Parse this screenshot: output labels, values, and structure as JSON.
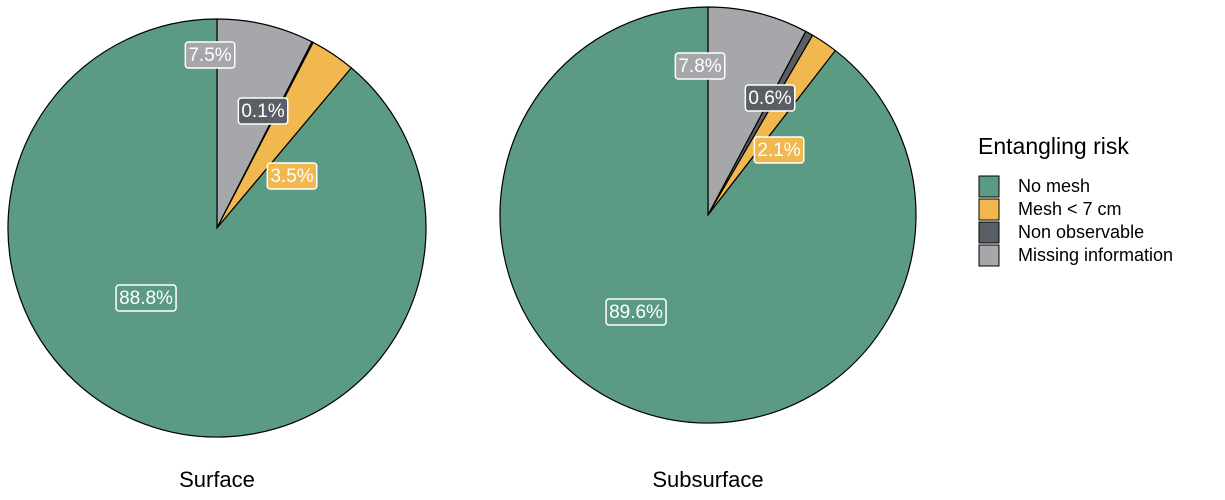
{
  "chart_data": [
    {
      "type": "pie",
      "title": "Surface",
      "legend_title": "Entangling risk",
      "categories": [
        "No mesh",
        "Mesh < 7 cm",
        "Non observable",
        "Missing information"
      ],
      "colors": [
        "#5b9a83",
        "#f0b84f",
        "#5a5f66",
        "#a6a7ab"
      ],
      "values": [
        88.8,
        3.5,
        0.1,
        7.5
      ],
      "value_labels": [
        "88.8%",
        "3.5%",
        "0.1%",
        "7.5%"
      ]
    },
    {
      "type": "pie",
      "title": "Subsurface",
      "categories": [
        "No mesh",
        "Mesh < 7 cm",
        "Non observable",
        "Missing information"
      ],
      "colors": [
        "#5b9a83",
        "#f0b84f",
        "#5a5f66",
        "#a6a7ab"
      ],
      "values": [
        89.6,
        2.1,
        0.6,
        7.8
      ],
      "value_labels": [
        "89.6%",
        "2.1%",
        "0.6%",
        "7.8%"
      ]
    }
  ]
}
